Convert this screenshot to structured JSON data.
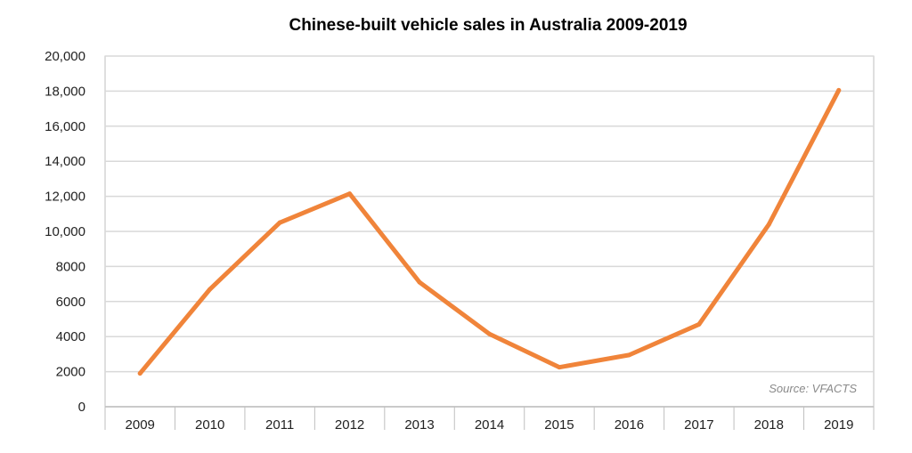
{
  "chart_data": {
    "type": "line",
    "title": "Chinese-built vehicle sales in Australia 2009-2019",
    "xlabel": "",
    "ylabel": "",
    "categories": [
      "2009",
      "2010",
      "2011",
      "2012",
      "2013",
      "2014",
      "2015",
      "2016",
      "2017",
      "2018",
      "2019"
    ],
    "series": [
      {
        "values": [
          1900,
          6700,
          10500,
          12150,
          7100,
          4150,
          2250,
          2950,
          4700,
          10400,
          18050
        ]
      }
    ],
    "ylim": [
      0,
      20000
    ],
    "yticks": [
      0,
      2000,
      4000,
      6000,
      8000,
      10000,
      12000,
      14000,
      16000,
      18000,
      20000
    ],
    "ytick_labels": [
      "0",
      "2000",
      "4000",
      "6000",
      "8000",
      "10,000",
      "12,000",
      "14,000",
      "16,000",
      "18,000",
      "20,000"
    ],
    "grid": true,
    "legend": "none",
    "source_note": "Source: VFACTS",
    "colors": {
      "line": "#F0843A",
      "grid": "#d9d9d9",
      "frame": "#bfbfbf"
    }
  }
}
